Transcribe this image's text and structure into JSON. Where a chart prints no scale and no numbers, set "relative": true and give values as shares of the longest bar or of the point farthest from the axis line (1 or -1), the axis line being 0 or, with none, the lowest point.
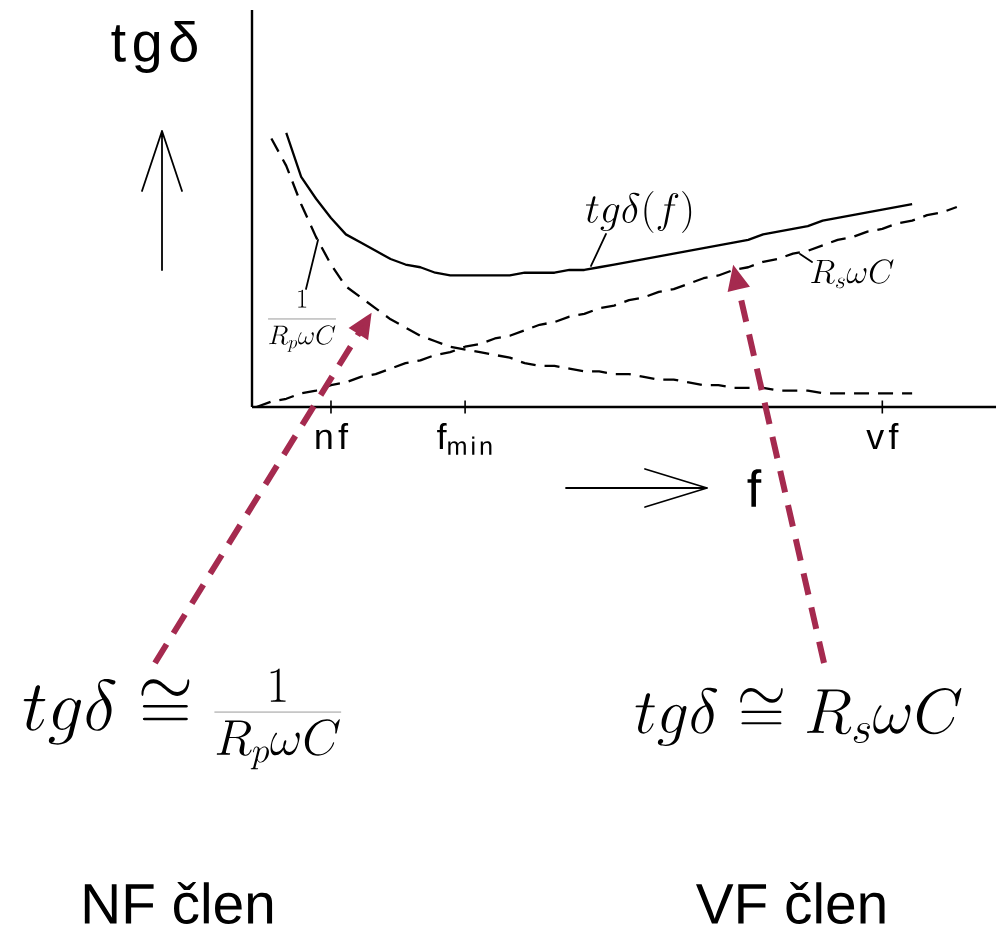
{
  "chart_data": {
    "type": "line",
    "relative": true,
    "ylabel": "tgδ",
    "xlabel": "f",
    "categories": [
      null,
      null,
      null,
      null,
      null,
      "nf",
      null,
      null,
      null,
      null,
      null,
      null,
      null,
      null,
      "f$_{min}$",
      null,
      null,
      null,
      null,
      null,
      null,
      null,
      null,
      null,
      null,
      null,
      null,
      null,
      null,
      null,
      null,
      null,
      null,
      null,
      null,
      null,
      null,
      null,
      null,
      null,
      null,
      null,
      "vf",
      null,
      null,
      null,
      null,
      null
    ],
    "series": [
      {
        "name": "tg\\delta(f)",
        "color": "#000000",
        "line_style": "solid",
        "values": [
          null,
          null,
          1.0,
          0.84,
          0.76,
          0.69,
          0.63,
          0.6,
          0.57,
          0.54,
          0.52,
          0.51,
          0.49,
          0.48,
          0.48,
          0.48,
          0.48,
          0.48,
          0.49,
          0.49,
          0.49,
          0.5,
          0.5,
          0.51,
          0.52,
          0.53,
          0.54,
          0.55,
          0.56,
          0.57,
          0.58,
          0.59,
          0.6,
          0.61,
          0.63,
          0.64,
          0.65,
          0.66,
          0.68,
          0.69,
          0.7,
          0.71,
          0.72,
          0.73,
          0.74,
          null,
          null,
          null
        ]
      },
      {
        "name": "\\frac{1}{R_{p}\\omega C}",
        "color": "#000000",
        "line_style": "dashed",
        "values": [
          null,
          0.98,
          0.88,
          0.74,
          0.62,
          0.52,
          0.44,
          0.4,
          0.36,
          0.32,
          0.29,
          0.26,
          0.24,
          0.22,
          0.21,
          0.2,
          0.19,
          0.18,
          0.16,
          0.15,
          0.15,
          0.14,
          0.13,
          0.13,
          0.12,
          0.12,
          0.11,
          0.1,
          0.1,
          0.09,
          0.08,
          0.08,
          0.07,
          0.07,
          0.07,
          0.06,
          0.06,
          0.06,
          0.05,
          0.05,
          0.05,
          0.05,
          0.05,
          0.05,
          0.05,
          null,
          null,
          null
        ]
      },
      {
        "name": "R_{s}\\omega C",
        "color": "#000000",
        "line_style": "dashed",
        "values": [
          0,
          0.02,
          0.03,
          0.05,
          0.06,
          0.08,
          0.09,
          0.11,
          0.12,
          0.14,
          0.16,
          0.17,
          0.19,
          0.2,
          0.22,
          0.23,
          0.25,
          0.26,
          0.28,
          0.3,
          0.31,
          0.33,
          0.34,
          0.36,
          0.37,
          0.39,
          0.4,
          0.42,
          0.43,
          0.45,
          0.47,
          0.48,
          0.5,
          0.51,
          0.53,
          0.54,
          0.56,
          0.57,
          0.59,
          0.61,
          0.62,
          0.64,
          0.65,
          0.67,
          0.68,
          0.7,
          0.71,
          0.73
        ]
      }
    ],
    "annotations": [
      "tg\\delta \\cong \\frac{1}{R_{p}\\omega C}",
      "tg\\delta \\cong R_{s}\\omega C",
      "NF člen",
      "VF člen"
    ]
  }
}
